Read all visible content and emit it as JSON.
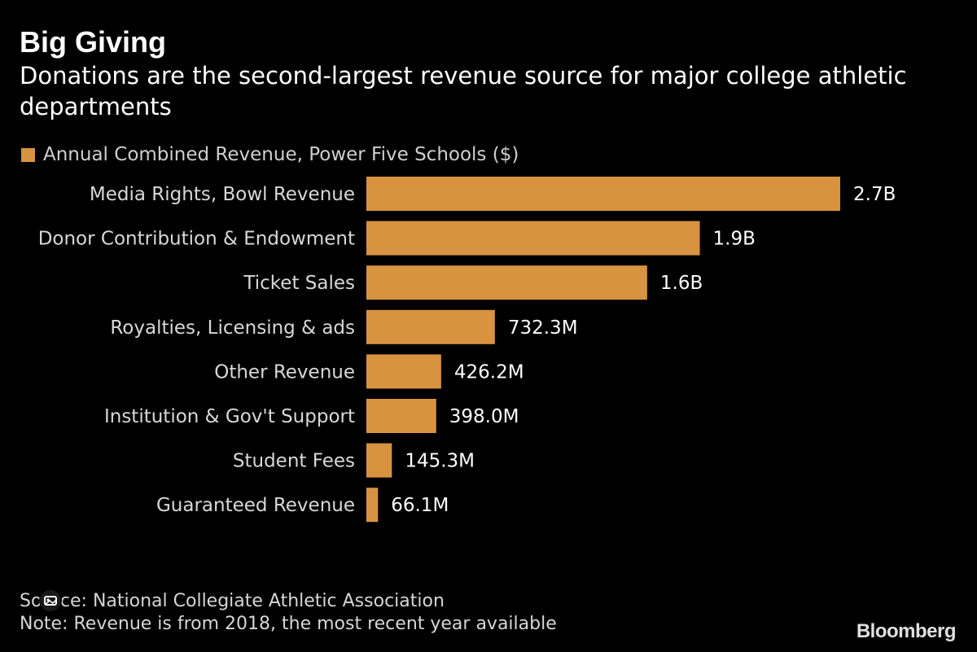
{
  "header": {
    "title": "Big Giving",
    "subtitle": "Donations are the second-largest revenue source for major college athletic departments"
  },
  "colors": {
    "bar": "#d79340",
    "background": "#000000"
  },
  "chart_data": {
    "type": "bar",
    "orientation": "horizontal",
    "title": "Big Giving",
    "subtitle": "Donations are the second-largest revenue source for major college athletic departments",
    "legend": [
      {
        "name": "Annual Combined Revenue, Power Five Schools ($)",
        "placement": "top-left"
      }
    ],
    "categories": [
      "Media Rights, Bowl Revenue",
      "Donor Contribution & Endowment",
      "Ticket Sales",
      "Royalties, Licensing & ads",
      "Other Revenue",
      "Institution & Gov't Support",
      "Student Fees",
      "Guaranteed Revenue"
    ],
    "series": [
      {
        "name": "Annual Combined Revenue, Power Five Schools ($)",
        "values": [
          2700000000,
          1900000000,
          1600000000,
          732300000,
          426200000,
          398000000,
          145300000,
          66100000
        ],
        "labels": [
          "2.7B",
          "1.9B",
          "1.6B",
          "732.3M",
          "426.2M",
          "398.0M",
          "145.3M",
          "66.1M"
        ]
      }
    ],
    "xlim": [
      0,
      2700000000
    ],
    "grid": false,
    "xlabel": "",
    "ylabel": ""
  },
  "footer": {
    "source": "Source: National Collegiate Athletic Association",
    "note": "Note: Revenue is from 2018, the most recent year available",
    "logo": "Bloomberg"
  }
}
